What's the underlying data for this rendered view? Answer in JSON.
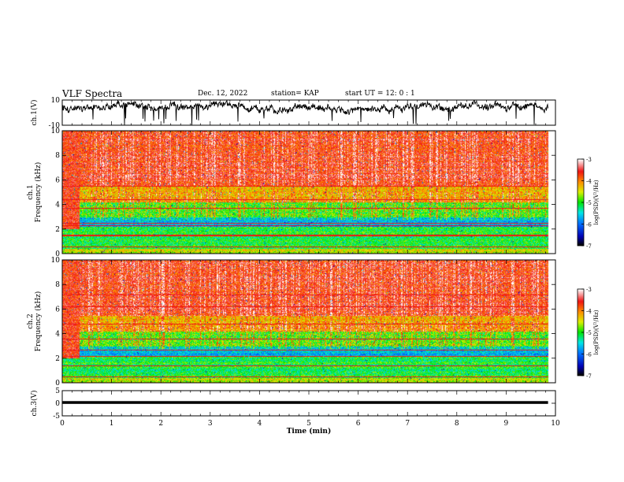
{
  "header": {
    "title": "VLF Spectra",
    "date": "Dec. 12, 2022",
    "station": "station= KAP",
    "start": "start UT =  12: 0 : 1"
  },
  "chart_data": [
    {
      "type": "line",
      "id": "ch1-waveform",
      "ylabel": "ch.1(V)",
      "ylim": [
        -10,
        10
      ],
      "yticks": [
        10,
        -10
      ],
      "xlim": [
        0,
        10
      ],
      "x_end": 9.85,
      "series": [
        {
          "color": "#000000",
          "style": "noisy waveform",
          "mean": 4.5,
          "spread": 3.5
        }
      ]
    },
    {
      "type": "heatmap",
      "id": "ch1-spectrogram",
      "ylabel": "ch.1\nFrequency (kHz)",
      "ylabel_lines": [
        "ch.1",
        "Frequency (kHz)"
      ],
      "ylim": [
        0,
        10
      ],
      "yticks": [
        0,
        2,
        4,
        6,
        8,
        10
      ],
      "xlim": [
        0,
        10
      ],
      "x_end": 9.85,
      "colorbar": {
        "label": "log(PSD)(V²/Hz)",
        "range": [
          -7,
          -3
        ],
        "ticks": [
          -3,
          -4,
          -5,
          -6,
          -7
        ]
      }
    },
    {
      "type": "heatmap",
      "id": "ch2-spectrogram",
      "ylabel": "ch.2\nFrequency (kHz)",
      "ylabel_lines": [
        "ch.2",
        "Frequency (kHz)"
      ],
      "ylim": [
        0,
        10
      ],
      "yticks": [
        0,
        2,
        4,
        6,
        8,
        10
      ],
      "xlim": [
        0,
        10
      ],
      "x_end": 9.85,
      "colorbar": {
        "label": "log(PSD)(V²/Hz)",
        "range": [
          -7,
          -3
        ],
        "ticks": [
          -3,
          -4,
          -5,
          -6,
          -7
        ]
      }
    },
    {
      "type": "line",
      "id": "ch3-waveform",
      "ylabel": "ch.3(V)",
      "ylim": [
        -5,
        5
      ],
      "yticks": [
        5,
        0,
        -5
      ],
      "xlim": [
        0,
        10
      ],
      "x_end": 9.85,
      "xlabel": "Time (min)",
      "xticks": [
        0,
        1,
        2,
        3,
        4,
        5,
        6,
        7,
        8,
        9,
        10
      ],
      "series": [
        {
          "color": "#000000",
          "style": "thick flat band",
          "center": 0.3,
          "halfwidth": 0.55
        }
      ]
    }
  ]
}
